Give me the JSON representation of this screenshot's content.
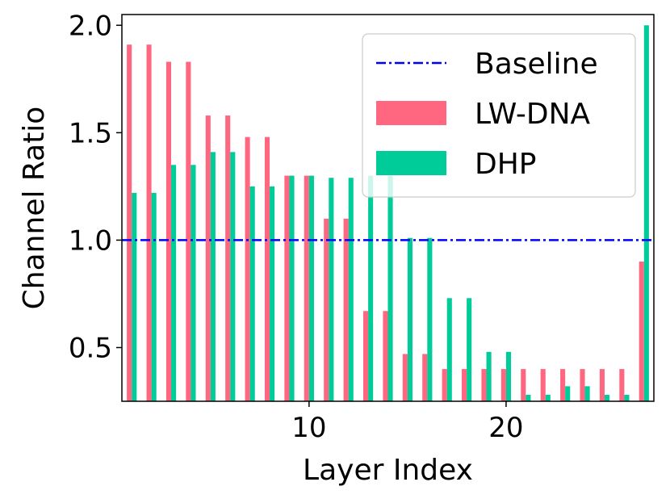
{
  "chart_data": {
    "type": "bar",
    "xlabel": "Layer Index",
    "ylabel": "Channel Ratio",
    "xlim": [
      0.5,
      27.5
    ],
    "ylim": [
      0.25,
      2.05
    ],
    "xticks": [
      10,
      20
    ],
    "yticks": [
      0.5,
      1.0,
      1.5,
      2.0
    ],
    "ytick_labels": [
      "0.5",
      "1.0",
      "1.5",
      "2.0"
    ],
    "grid": false,
    "legend_position": "top-right",
    "x": [
      1,
      2,
      3,
      4,
      5,
      6,
      7,
      8,
      9,
      10,
      11,
      12,
      13,
      14,
      15,
      16,
      17,
      18,
      19,
      20,
      21,
      22,
      23,
      24,
      25,
      26,
      27
    ],
    "series": [
      {
        "name": "LW-DNA",
        "color": "#ff6680",
        "values": [
          1.91,
          1.91,
          1.83,
          1.83,
          1.58,
          1.58,
          1.48,
          1.48,
          1.3,
          1.3,
          1.1,
          1.1,
          0.67,
          0.67,
          0.47,
          0.47,
          0.4,
          0.4,
          0.4,
          0.4,
          0.4,
          0.4,
          0.4,
          0.4,
          0.4,
          0.4,
          0.9
        ]
      },
      {
        "name": "DHP",
        "color": "#00cc99",
        "values": [
          1.22,
          1.22,
          1.35,
          1.35,
          1.41,
          1.41,
          1.25,
          1.25,
          1.3,
          1.3,
          1.29,
          1.29,
          1.3,
          1.3,
          1.01,
          1.01,
          0.73,
          0.73,
          0.48,
          0.48,
          0.28,
          0.28,
          0.32,
          0.32,
          0.28,
          0.28,
          2.0
        ]
      }
    ],
    "reference_lines": [
      {
        "name": "Baseline",
        "y": 1.0,
        "color": "#0000ff",
        "style": "dash-dot"
      }
    ]
  }
}
